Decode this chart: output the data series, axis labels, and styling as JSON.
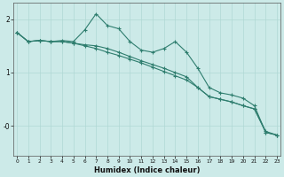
{
  "xlabel": "Humidex (Indice chaleur)",
  "bg_color": "#cceae8",
  "line_color": "#2e7d6e",
  "grid_color": "#b0d8d4",
  "x_values": [
    0,
    1,
    2,
    3,
    4,
    5,
    6,
    7,
    8,
    9,
    10,
    11,
    12,
    13,
    14,
    15,
    16,
    17,
    18,
    19,
    20,
    21,
    22,
    23
  ],
  "series1": [
    1.75,
    1.58,
    1.6,
    1.58,
    1.6,
    1.58,
    1.8,
    2.1,
    1.88,
    1.82,
    1.58,
    1.42,
    1.38,
    1.45,
    1.58,
    1.38,
    1.08,
    0.72,
    0.62,
    0.58,
    0.52,
    0.38,
    -0.12,
    -0.17
  ],
  "series2": [
    1.75,
    1.58,
    1.6,
    1.58,
    1.58,
    1.55,
    1.52,
    1.5,
    1.45,
    1.38,
    1.3,
    1.22,
    1.15,
    1.08,
    1.0,
    0.92,
    0.72,
    0.55,
    0.5,
    0.45,
    0.38,
    0.32,
    -0.1,
    -0.17
  ],
  "series3": [
    1.75,
    1.58,
    1.6,
    1.58,
    1.58,
    1.55,
    1.5,
    1.45,
    1.38,
    1.32,
    1.25,
    1.18,
    1.1,
    1.02,
    0.94,
    0.86,
    0.72,
    0.55,
    0.5,
    0.45,
    0.38,
    0.32,
    -0.12,
    -0.17
  ],
  "ylim": [
    -0.55,
    2.3
  ],
  "ytick_vals": [
    2,
    1,
    0
  ],
  "ytick_labels": [
    "2",
    "1",
    "-0"
  ]
}
